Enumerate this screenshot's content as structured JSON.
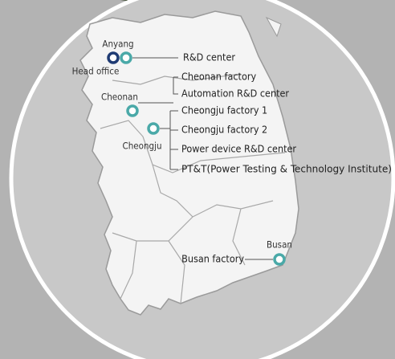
{
  "map": {
    "cities": [
      "Anyang",
      "Head office",
      "Cheonan",
      "Cheongju",
      "Busan"
    ],
    "facilities": [
      "R&D center",
      "Cheonan factory",
      "Automation R&D center",
      "Cheongju factory 1",
      "Cheongju factory 2",
      "Power device R&D center",
      "PT&T(Power Testing & Technology Institute)",
      "Busan factory"
    ]
  }
}
